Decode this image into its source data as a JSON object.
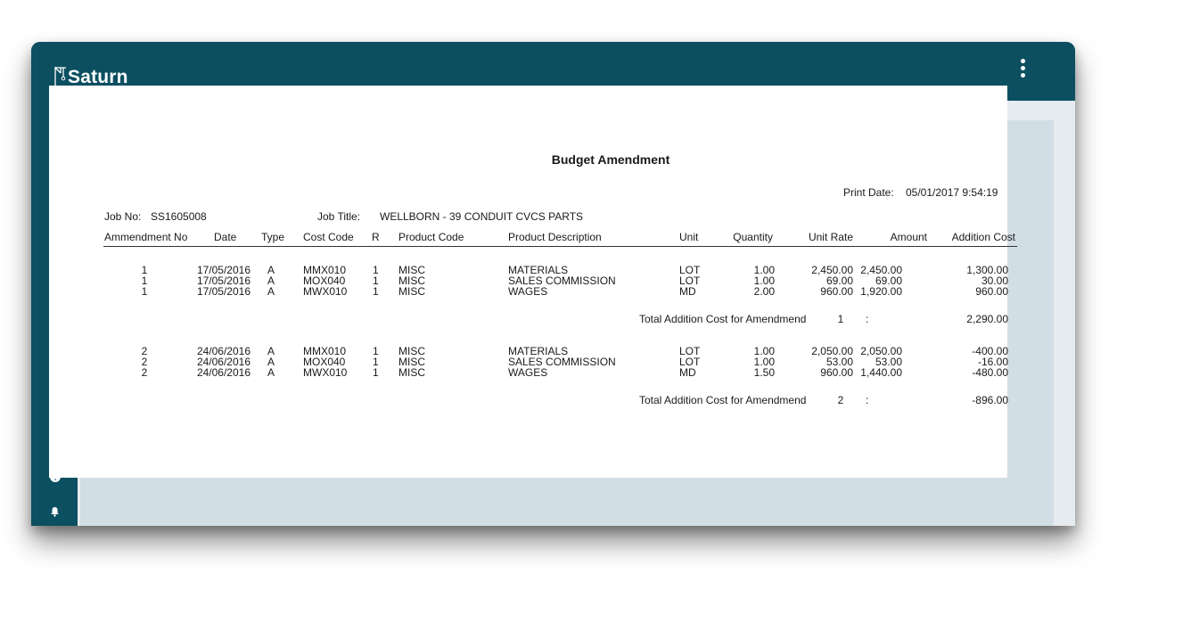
{
  "app": {
    "name": "Saturn"
  },
  "sidebar": {
    "items": [
      {
        "icon": "home-icon"
      },
      {
        "icon": "search-icon"
      },
      {
        "icon": "apps-grid-icon"
      },
      {
        "icon": "help-icon"
      },
      {
        "icon": "bell-icon"
      }
    ]
  },
  "report": {
    "title": "Budget Amendment",
    "print_date_label": "Print Date:",
    "print_date": "05/01/2017 9:54:19",
    "job_no_label": "Job No:",
    "job_no": "SS1605008",
    "job_title_label": "Job Title:",
    "job_title": "WELLBORN - 39 CONDUIT CVCS PARTS",
    "columns": [
      "Ammendment No",
      "Date",
      "Type",
      "Cost Code",
      "R",
      "Product Code",
      "Product Description",
      "Unit",
      "Quantity",
      "Unit Rate",
      "Amount",
      "Addition Cost"
    ],
    "groups": [
      {
        "rows": [
          [
            "1",
            "17/05/2016",
            "A",
            "MMX010",
            "1",
            "MISC",
            "MATERIALS",
            "LOT",
            "1.00",
            "2,450.00",
            "2,450.00",
            "1,300.00"
          ],
          [
            "1",
            "17/05/2016",
            "A",
            "MOX040",
            "1",
            "MISC",
            "SALES COMMISSION",
            "LOT",
            "1.00",
            "69.00",
            "69.00",
            "30.00"
          ],
          [
            "1",
            "17/05/2016",
            "A",
            "MWX010",
            "1",
            "MISC",
            "WAGES",
            "MD",
            "2.00",
            "960.00",
            "1,920.00",
            "960.00"
          ]
        ],
        "total_label": "Total Addition Cost for Amendmend",
        "total_no": "1",
        "total_sep": ":",
        "total": "2,290.00"
      },
      {
        "rows": [
          [
            "2",
            "24/06/2016",
            "A",
            "MMX010",
            "1",
            "MISC",
            "MATERIALS",
            "LOT",
            "1.00",
            "2,050.00",
            "2,050.00",
            "-400.00"
          ],
          [
            "2",
            "24/06/2016",
            "A",
            "MOX040",
            "1",
            "MISC",
            "SALES COMMISSION",
            "LOT",
            "1.00",
            "53.00",
            "53.00",
            "-16.00"
          ],
          [
            "2",
            "24/06/2016",
            "A",
            "MWX010",
            "1",
            "MISC",
            "WAGES",
            "MD",
            "1.50",
            "960.00",
            "1,440.00",
            "-480.00"
          ]
        ],
        "total_label": "Total Addition Cost for Amendmend",
        "total_no": "2",
        "total_sep": ":",
        "total": "-896.00"
      }
    ]
  },
  "colors": {
    "brand": "#0b4f61",
    "content_bg": "#e5ebef",
    "frame_bg": "#d2dee5"
  }
}
